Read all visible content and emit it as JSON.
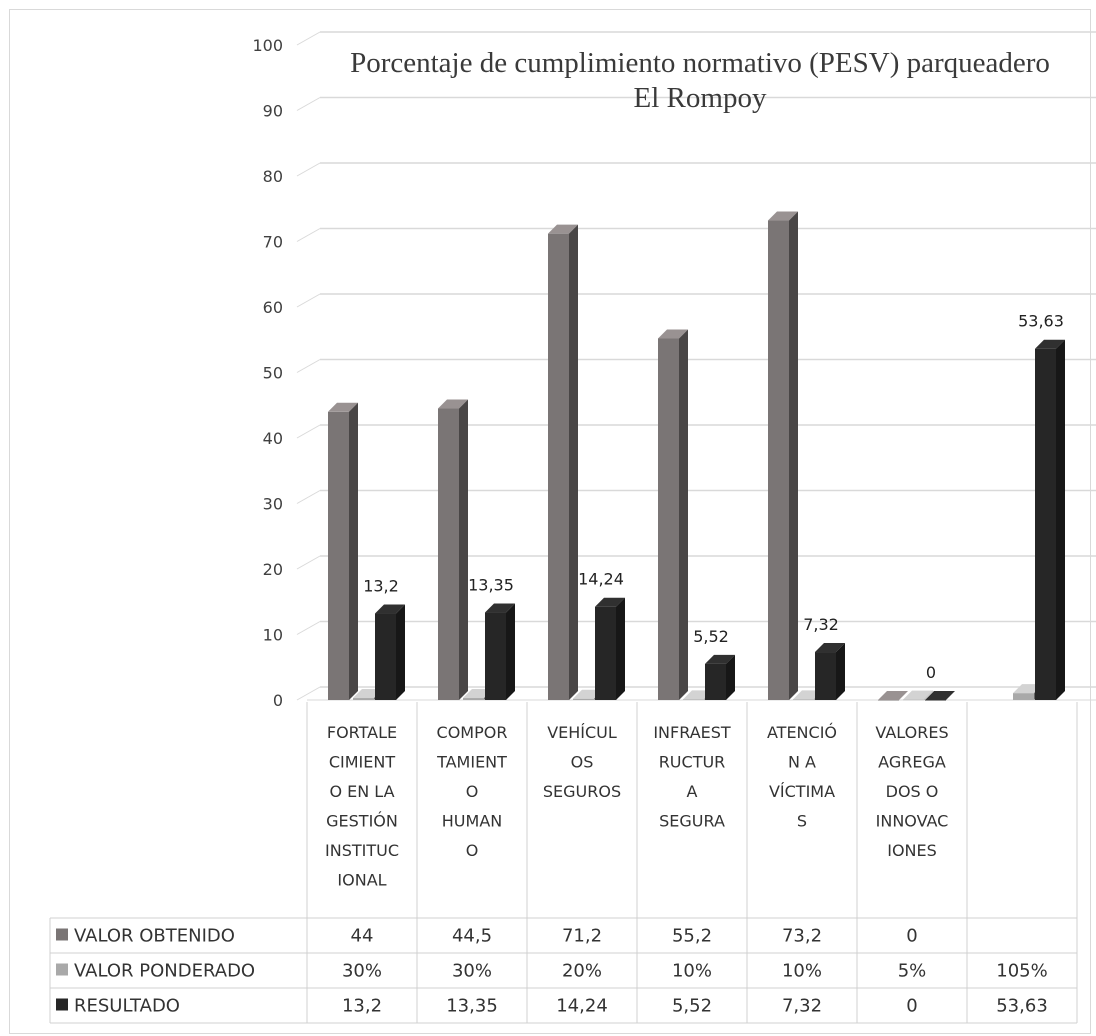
{
  "chart_data": {
    "type": "bar",
    "title": "Porcentaje de cumplimiento  normativo (PESV) parqueadero El Rompoy",
    "title_lines": [
      "Porcentaje de cumplimiento  normativo (PESV) parqueadero",
      "El Rompoy"
    ],
    "ylim": [
      0,
      100
    ],
    "y_ticks": [
      "0",
      "10",
      "20",
      "30",
      "40",
      "50",
      "60",
      "70",
      "80",
      "90",
      "100"
    ],
    "grid": true,
    "legend": "data-table-below",
    "categories": [
      [
        "FORTALE",
        "CIMIENT",
        "O EN LA",
        "GESTIÓN",
        "INSTITUC",
        "IONAL"
      ],
      [
        "COMPOR",
        "TAMIENT",
        "O",
        "HUMAN",
        "O"
      ],
      [
        "VEHÍCUL",
        "OS",
        "SEGUROS"
      ],
      [
        "INFRAEST",
        "RUCTUR",
        "A",
        "SEGURA"
      ],
      [
        "ATENCIÓ",
        "N A",
        "VÍCTIMA",
        "S"
      ],
      [
        "VALORES",
        "AGREGA",
        "DOS O",
        "INNOVAC",
        "IONES"
      ],
      []
    ],
    "series": [
      {
        "name": "VALOR OBTENIDO",
        "color": "#7a7575",
        "values": [
          44,
          44.5,
          71.2,
          55.2,
          73.2,
          0,
          null
        ],
        "table": [
          "44",
          "44,5",
          "71,2",
          "55,2",
          "73,2",
          "0",
          ""
        ]
      },
      {
        "name": "VALOR PONDERADO",
        "color": "#a9a9a9",
        "values": [
          0.3,
          0.3,
          0.2,
          0.1,
          0.1,
          0.05,
          1.05
        ],
        "table": [
          "30%",
          "30%",
          "20%",
          "10%",
          "10%",
          "5%",
          "105%"
        ]
      },
      {
        "name": "RESULTADO",
        "color": "#262626",
        "values": [
          13.2,
          13.35,
          14.24,
          5.52,
          7.32,
          0,
          53.63
        ],
        "table": [
          "13,2",
          "13,35",
          "14,24",
          "5,52",
          "7,32",
          "0",
          "53,63"
        ],
        "labels": [
          "13,2",
          "13,35",
          "14,24",
          "5,52",
          "7,32",
          "0",
          "53,63"
        ]
      }
    ]
  }
}
